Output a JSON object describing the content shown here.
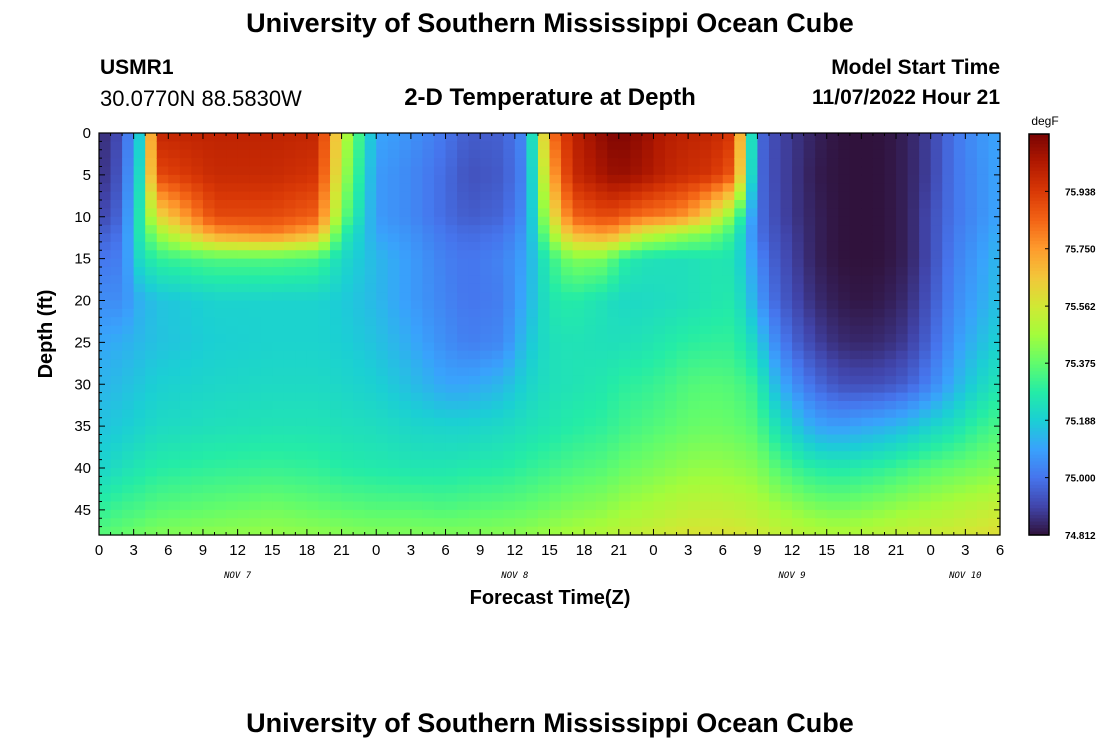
{
  "header": {
    "title": "University of Southern Mississippi Ocean Cube",
    "station_id": "USMR1",
    "station_coords": "30.0770N  88.5830W",
    "subtitle": "2-D Temperature at Depth",
    "model_label": "Model Start Time",
    "model_time": "11/07/2022 Hour 21"
  },
  "footer": {
    "title": "University of Southern Mississippi Ocean Cube"
  },
  "chart_data": {
    "type": "heatmap",
    "title": "2-D Temperature at Depth",
    "xlabel": "Forecast Time(Z)",
    "ylabel": "Depth (ft)",
    "x_tick_labels": [
      "0",
      "3",
      "6",
      "9",
      "12",
      "15",
      "18",
      "21",
      "0",
      "3",
      "6",
      "9",
      "12",
      "15",
      "18",
      "21",
      "0",
      "3",
      "6",
      "9",
      "12",
      "15",
      "18",
      "21",
      "0",
      "3",
      "6"
    ],
    "x_day_labels": [
      "NOV 7",
      "NOV 8",
      "NOV 9",
      "NOV 10"
    ],
    "x_range_hours": [
      0,
      78
    ],
    "y_range": [
      0,
      48
    ],
    "y_ticks": [
      0,
      5,
      10,
      15,
      20,
      25,
      30,
      35,
      40,
      45
    ],
    "y_inverted": true,
    "colorbar": {
      "unit": "degF",
      "range": [
        74.812,
        76.126
      ],
      "tick_labels": [
        "75.938",
        "75.750",
        "75.562",
        "75.375",
        "75.188",
        "75.000",
        "74.812"
      ],
      "colors": [
        "#30123b",
        "#4145ab",
        "#4675ed",
        "#39a2fc",
        "#1bcfd4",
        "#24eca6",
        "#61fc6c",
        "#a4fc3b",
        "#d1e834",
        "#f3c63a",
        "#fe9b2d",
        "#f36315",
        "#d93806",
        "#b11901",
        "#7a0403"
      ]
    },
    "temperature_values_degF": {
      "time_hours": [
        0,
        2,
        3.5,
        5,
        10,
        15,
        19,
        21,
        24,
        27,
        30,
        32,
        35,
        37,
        39,
        41,
        44,
        45,
        47,
        49,
        51,
        53,
        55,
        57,
        58,
        60,
        62,
        64,
        66,
        68,
        70,
        72,
        74,
        76,
        78
      ],
      "depth_ft": [
        0,
        5,
        10,
        12,
        15,
        20,
        25,
        30,
        35,
        40,
        45,
        48
      ],
      "values": [
        [
          74.85,
          74.93,
          75.18,
          75.99,
          76.0,
          76.0,
          75.99,
          75.55,
          75.1,
          75.06,
          75.0,
          74.95,
          74.96,
          75.05,
          75.8,
          76.0,
          76.1,
          76.12,
          76.08,
          76.02,
          76.0,
          75.99,
          75.94,
          75.0,
          74.93,
          74.88,
          74.84,
          74.815,
          74.812,
          74.815,
          74.84,
          74.9,
          75.0,
          75.06,
          75.1
        ],
        [
          74.86,
          74.95,
          75.22,
          75.9,
          75.98,
          75.98,
          75.95,
          75.5,
          75.08,
          75.04,
          74.98,
          74.93,
          74.95,
          75.04,
          75.7,
          75.98,
          76.06,
          76.08,
          76.05,
          76.0,
          75.97,
          75.95,
          75.86,
          75.0,
          74.93,
          74.88,
          74.83,
          74.815,
          74.812,
          74.815,
          74.84,
          74.9,
          75.0,
          75.05,
          75.1
        ],
        [
          74.9,
          74.98,
          75.26,
          75.6,
          75.9,
          75.9,
          75.85,
          75.4,
          75.08,
          75.04,
          74.98,
          74.95,
          74.97,
          75.06,
          75.55,
          75.85,
          75.9,
          75.88,
          75.82,
          75.8,
          75.75,
          75.6,
          75.4,
          75.0,
          74.94,
          74.88,
          74.84,
          74.815,
          74.812,
          74.815,
          74.84,
          74.92,
          75.0,
          75.05,
          75.1
        ],
        [
          74.95,
          75.0,
          75.26,
          75.45,
          75.75,
          75.8,
          75.7,
          75.3,
          75.1,
          75.06,
          75.0,
          74.98,
          75.0,
          75.08,
          75.45,
          75.7,
          75.75,
          75.7,
          75.55,
          75.5,
          75.45,
          75.4,
          75.3,
          75.0,
          74.95,
          74.89,
          74.84,
          74.815,
          74.812,
          74.815,
          74.84,
          74.92,
          75.01,
          75.06,
          75.12
        ],
        [
          75.0,
          75.02,
          75.22,
          75.3,
          75.35,
          75.35,
          75.33,
          75.22,
          75.14,
          75.08,
          75.02,
          75.0,
          75.03,
          75.1,
          75.3,
          75.42,
          75.4,
          75.3,
          75.25,
          75.24,
          75.24,
          75.26,
          75.25,
          75.05,
          74.97,
          74.9,
          74.84,
          74.815,
          74.812,
          74.815,
          74.84,
          74.92,
          75.02,
          75.08,
          75.14
        ],
        [
          75.05,
          75.05,
          75.12,
          75.16,
          75.2,
          75.2,
          75.2,
          75.18,
          75.14,
          75.08,
          75.03,
          75.0,
          75.02,
          75.12,
          75.26,
          75.28,
          75.24,
          75.22,
          75.22,
          75.23,
          75.24,
          75.26,
          75.27,
          75.1,
          75.0,
          74.92,
          74.86,
          74.83,
          74.82,
          74.83,
          74.86,
          74.94,
          75.04,
          75.1,
          75.16
        ],
        [
          75.1,
          75.12,
          75.14,
          75.16,
          75.19,
          75.2,
          75.2,
          75.19,
          75.16,
          75.11,
          75.05,
          75.02,
          75.04,
          75.16,
          75.24,
          75.25,
          75.24,
          75.24,
          75.25,
          75.27,
          75.29,
          75.3,
          75.3,
          75.2,
          75.08,
          74.97,
          74.9,
          74.86,
          74.85,
          74.86,
          74.89,
          74.97,
          75.07,
          75.14,
          75.2
        ],
        [
          75.13,
          75.15,
          75.17,
          75.19,
          75.21,
          75.22,
          75.22,
          75.21,
          75.19,
          75.15,
          75.1,
          75.1,
          75.14,
          75.2,
          75.24,
          75.25,
          75.27,
          75.29,
          75.3,
          75.32,
          75.35,
          75.36,
          75.35,
          75.3,
          75.18,
          75.06,
          74.98,
          74.93,
          74.92,
          74.93,
          74.96,
          75.03,
          75.12,
          75.2,
          75.26
        ],
        [
          75.16,
          75.18,
          75.2,
          75.22,
          75.24,
          75.25,
          75.25,
          75.24,
          75.23,
          75.21,
          75.2,
          75.2,
          75.22,
          75.24,
          75.26,
          75.28,
          75.3,
          75.32,
          75.34,
          75.36,
          75.38,
          75.39,
          75.38,
          75.35,
          75.28,
          75.18,
          75.1,
          75.08,
          75.1,
          75.12,
          75.15,
          75.2,
          75.24,
          75.3,
          75.34
        ],
        [
          75.2,
          75.24,
          75.26,
          75.28,
          75.3,
          75.31,
          75.3,
          75.28,
          75.27,
          75.26,
          75.26,
          75.27,
          75.28,
          75.3,
          75.32,
          75.34,
          75.36,
          75.38,
          75.4,
          75.42,
          75.44,
          75.45,
          75.44,
          75.42,
          75.38,
          75.32,
          75.28,
          75.27,
          75.28,
          75.3,
          75.33,
          75.36,
          75.38,
          75.4,
          75.42
        ],
        [
          75.3,
          75.33,
          75.34,
          75.36,
          75.38,
          75.4,
          75.38,
          75.37,
          75.36,
          75.36,
          75.35,
          75.36,
          75.37,
          75.38,
          75.4,
          75.42,
          75.44,
          75.46,
          75.48,
          75.5,
          75.52,
          75.53,
          75.52,
          75.5,
          75.48,
          75.45,
          75.42,
          75.41,
          75.42,
          75.44,
          75.46,
          75.48,
          75.5,
          75.52,
          75.54
        ],
        [
          75.36,
          75.38,
          75.4,
          75.42,
          75.44,
          75.45,
          75.44,
          75.43,
          75.42,
          75.42,
          75.42,
          75.42,
          75.43,
          75.44,
          75.46,
          75.48,
          75.5,
          75.52,
          75.54,
          75.56,
          75.58,
          75.58,
          75.58,
          75.56,
          75.54,
          75.52,
          75.5,
          75.49,
          75.5,
          75.52,
          75.54,
          75.55,
          75.56,
          75.58,
          75.6
        ]
      ]
    }
  }
}
